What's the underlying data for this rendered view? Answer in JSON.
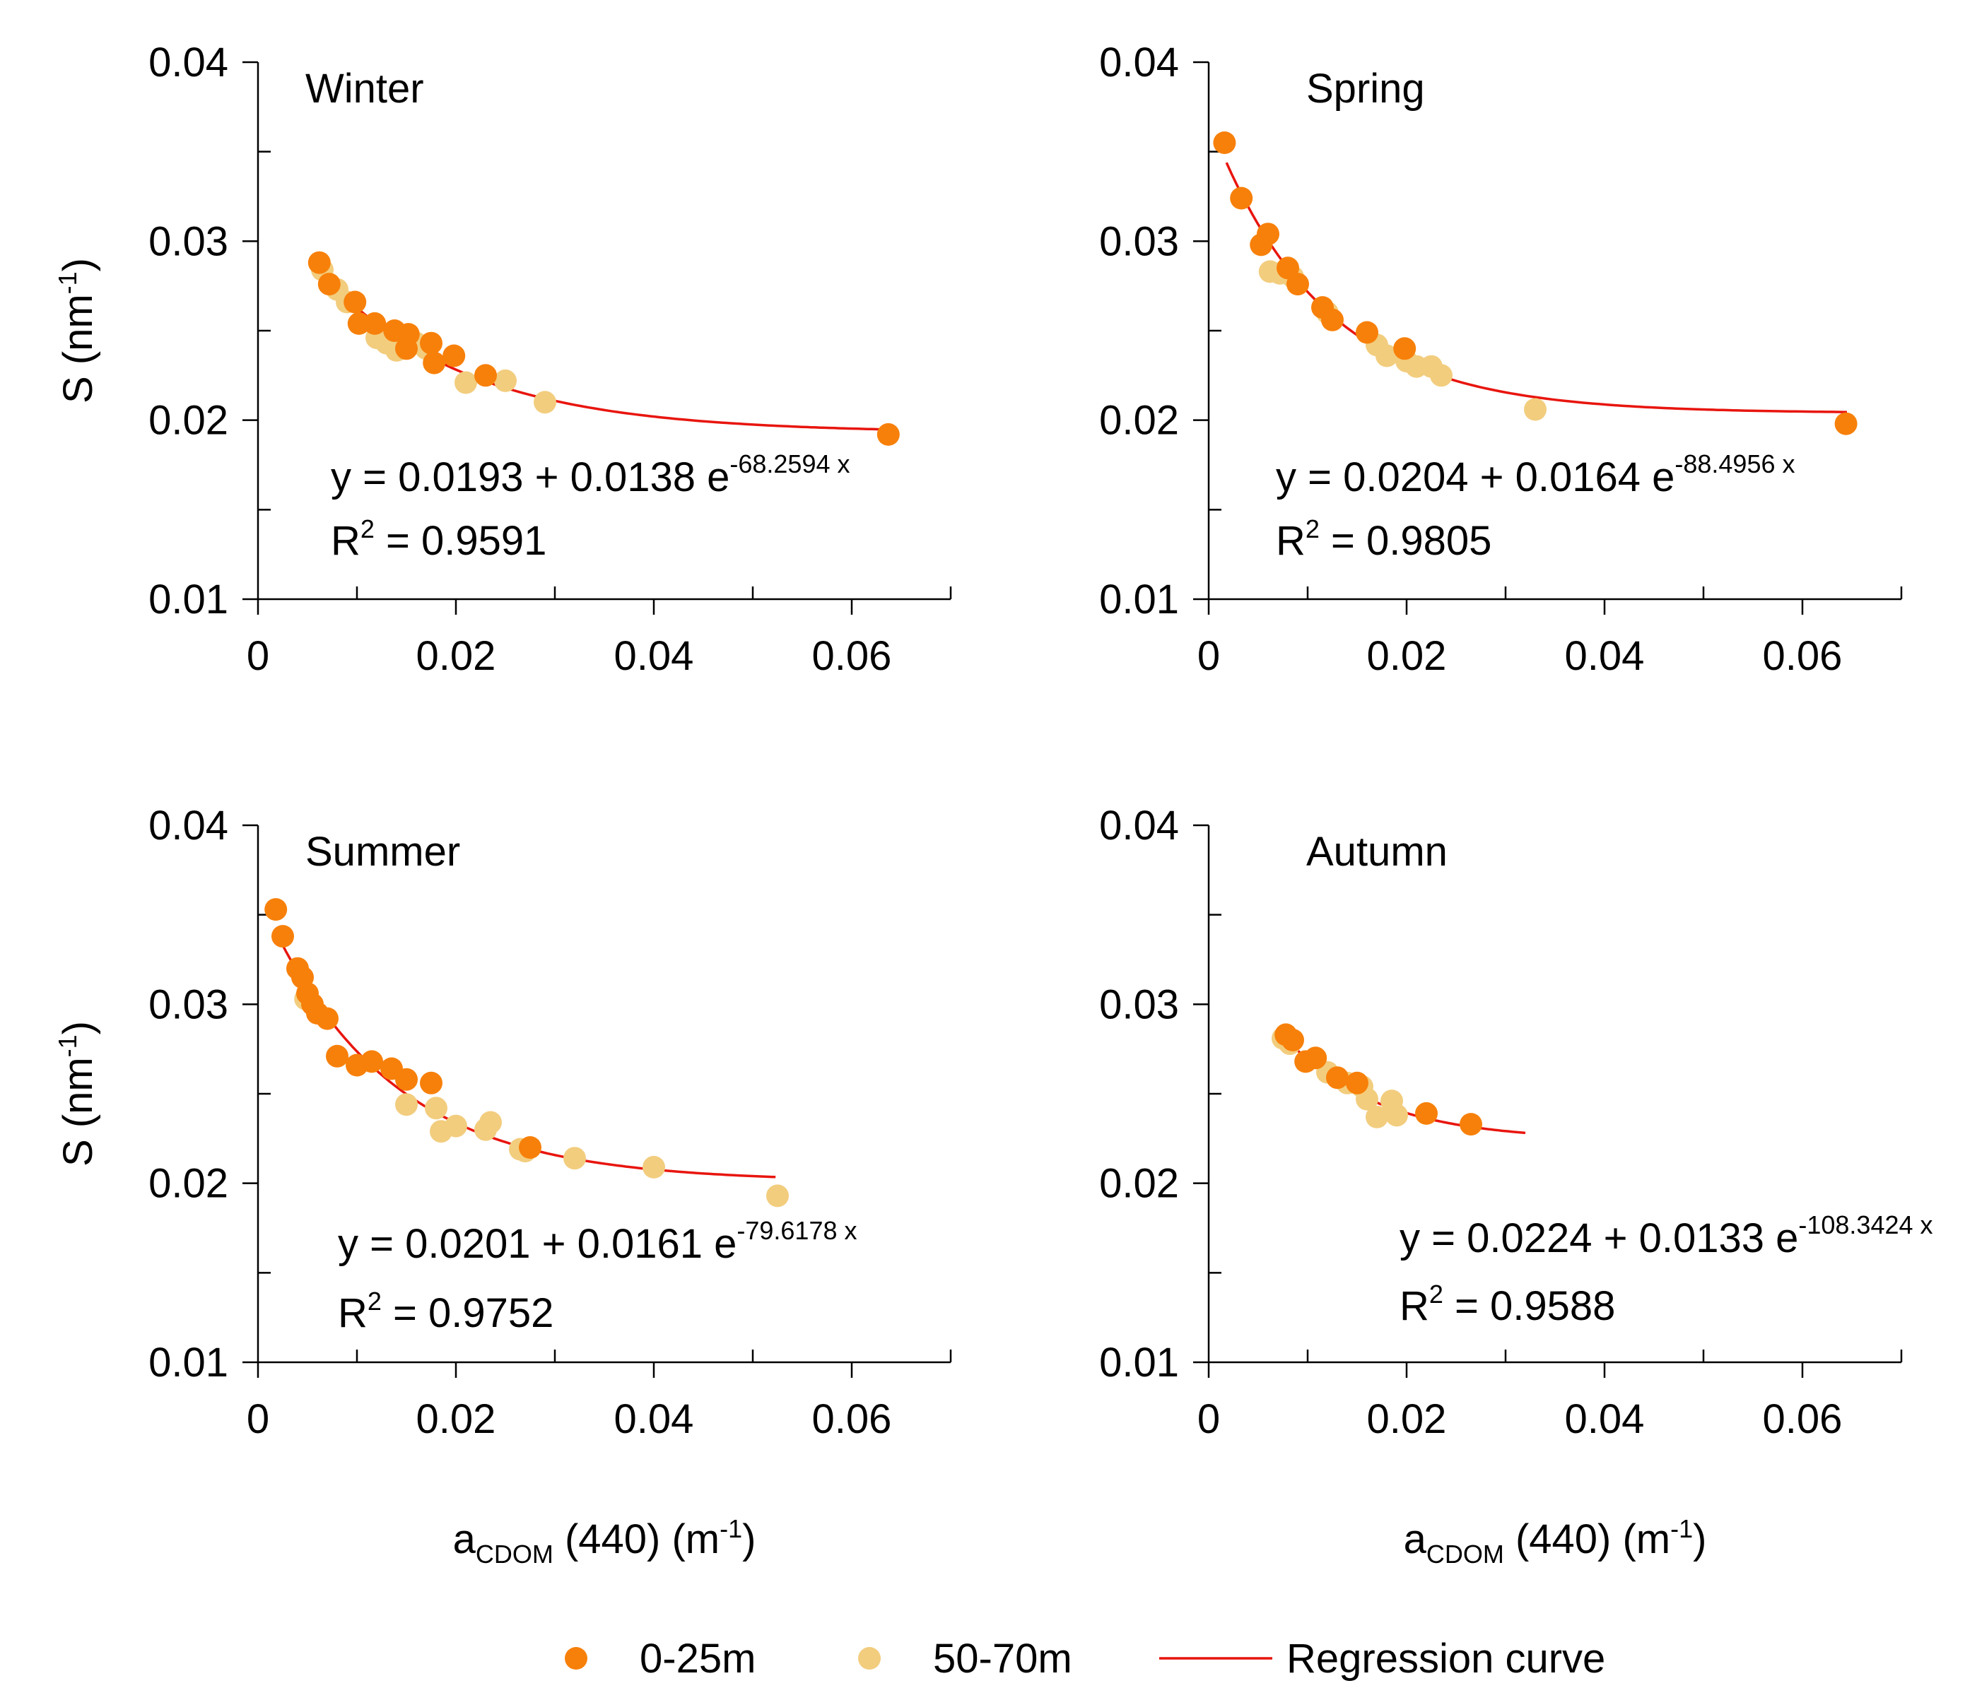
{
  "chart_data": [
    {
      "type": "scatter",
      "title": "Winter",
      "xlabel": "",
      "ylabel": "S (nm-1)",
      "xlim": [
        0,
        0.07
      ],
      "ylim": [
        0.01,
        0.04
      ],
      "xticks": [
        "0",
        "0.02",
        "0.04",
        "0.06"
      ],
      "yticks": [
        "0.01",
        "0.02",
        "0.03",
        "0.04"
      ],
      "fit": {
        "a": 0.0193,
        "b": 0.0138,
        "k": -68.2594,
        "xrange": [
          0.0063,
          0.0635
        ]
      },
      "equation": {
        "prefix": "y = 0.0193 + 0.0138 e",
        "exponent": "-68.2594 x",
        "r2_prefix": "R",
        "r2_sup": "2",
        "r2_value": " = 0.9591"
      },
      "series": [
        {
          "name": "0-25m",
          "color": "#f7800a",
          "x": [
            0.0062,
            0.0072,
            0.0098,
            0.0102,
            0.0118,
            0.0138,
            0.015,
            0.0152,
            0.0175,
            0.0178,
            0.0198,
            0.023,
            0.0637
          ],
          "y": [
            0.0288,
            0.0276,
            0.0266,
            0.0254,
            0.0254,
            0.025,
            0.024,
            0.0248,
            0.0243,
            0.0232,
            0.0236,
            0.0225,
            0.0192
          ]
        },
        {
          "name": "50-70m",
          "color": "#f2cd7e",
          "x": [
            0.0065,
            0.008,
            0.009,
            0.012,
            0.013,
            0.014,
            0.016,
            0.017,
            0.021,
            0.025,
            0.029
          ],
          "y": [
            0.0284,
            0.0273,
            0.0266,
            0.0246,
            0.0243,
            0.0239,
            0.0243,
            0.024,
            0.0221,
            0.0222,
            0.021
          ]
        }
      ]
    },
    {
      "type": "scatter",
      "title": "Spring",
      "xlabel": "",
      "ylabel": "",
      "xlim": [
        0,
        0.07
      ],
      "ylim": [
        0.01,
        0.04
      ],
      "xticks": [
        "0",
        "0.02",
        "0.04",
        "0.06"
      ],
      "yticks": [
        "0.01",
        "0.02",
        "0.03",
        "0.04"
      ],
      "fit": {
        "a": 0.0204,
        "b": 0.0164,
        "k": -88.4956,
        "xrange": [
          0.0018,
          0.0645
        ]
      },
      "equation": {
        "prefix": "y = 0.0204 + 0.0164 e",
        "exponent": "-88.4956 x",
        "r2_prefix": "R",
        "r2_sup": "2",
        "r2_value": " = 0.9805"
      },
      "series": [
        {
          "name": "0-25m",
          "color": "#f7800a",
          "x": [
            0.0016,
            0.0033,
            0.0053,
            0.006,
            0.008,
            0.009,
            0.0115,
            0.0125,
            0.016,
            0.0198,
            0.0644
          ],
          "y": [
            0.0355,
            0.0324,
            0.0298,
            0.0304,
            0.0285,
            0.0276,
            0.0263,
            0.0256,
            0.0249,
            0.024,
            0.0198
          ]
        },
        {
          "name": "50-70m",
          "color": "#f2cd7e",
          "x": [
            0.0062,
            0.0072,
            0.0085,
            0.012,
            0.017,
            0.018,
            0.02,
            0.021,
            0.0225,
            0.0235,
            0.033
          ],
          "y": [
            0.0283,
            0.0282,
            0.028,
            0.026,
            0.0242,
            0.0236,
            0.0233,
            0.023,
            0.023,
            0.0225,
            0.0206
          ]
        }
      ]
    },
    {
      "type": "scatter",
      "title": "Summer",
      "xlabel": "aCDOM (440) (m-1)",
      "ylabel": "S (nm-1)",
      "xlim": [
        0,
        0.07
      ],
      "ylim": [
        0.01,
        0.04
      ],
      "xticks": [
        "0",
        "0.02",
        "0.04",
        "0.06"
      ],
      "yticks": [
        "0.01",
        "0.02",
        "0.03",
        "0.04"
      ],
      "fit": {
        "a": 0.0201,
        "b": 0.0161,
        "k": -79.6178,
        "xrange": [
          0.002,
          0.0523
        ]
      },
      "equation": {
        "prefix": "y = 0.0201 + 0.0161 e",
        "exponent": "-79.6178 x",
        "r2_prefix": "R",
        "r2_sup": "2",
        "r2_value": " = 0.9752"
      },
      "series": [
        {
          "name": "0-25m",
          "color": "#f7800a",
          "x": [
            0.0018,
            0.0025,
            0.004,
            0.0045,
            0.005,
            0.0055,
            0.006,
            0.007,
            0.008,
            0.01,
            0.0115,
            0.0135,
            0.015,
            0.0175,
            0.0275
          ],
          "y": [
            0.0353,
            0.0338,
            0.032,
            0.0315,
            0.0306,
            0.03,
            0.0295,
            0.0292,
            0.0271,
            0.0266,
            0.0268,
            0.0264,
            0.0258,
            0.0256,
            0.022
          ]
        },
        {
          "name": "50-70m",
          "color": "#f2cd7e",
          "x": [
            0.0048,
            0.015,
            0.018,
            0.0185,
            0.02,
            0.023,
            0.0235,
            0.0265,
            0.027,
            0.032,
            0.04,
            0.0525
          ],
          "y": [
            0.0303,
            0.0244,
            0.0242,
            0.0229,
            0.0232,
            0.023,
            0.0234,
            0.0219,
            0.0218,
            0.0214,
            0.0209,
            0.0193
          ]
        }
      ]
    },
    {
      "type": "scatter",
      "title": "Autumn",
      "xlabel": "aCDOM (440) (m-1)",
      "ylabel": "",
      "xlim": [
        0,
        0.07
      ],
      "ylim": [
        0.01,
        0.04
      ],
      "xticks": [
        "0",
        "0.02",
        "0.04",
        "0.06"
      ],
      "yticks": [
        "0.01",
        "0.02",
        "0.03",
        "0.04"
      ],
      "fit": {
        "a": 0.0224,
        "b": 0.0133,
        "k": -108.3424,
        "xrange": [
          0.0075,
          0.032
        ]
      },
      "equation": {
        "prefix": "y = 0.0224 + 0.0133 e",
        "exponent": "-108.3424 x",
        "r2_prefix": "R",
        "r2_sup": "2",
        "r2_value": " = 0.9588"
      },
      "series": [
        {
          "name": "0-25m",
          "color": "#f7800a",
          "x": [
            0.0078,
            0.0085,
            0.0098,
            0.0108,
            0.013,
            0.015,
            0.022,
            0.0265
          ],
          "y": [
            0.0283,
            0.028,
            0.0268,
            0.027,
            0.0259,
            0.0256,
            0.0239,
            0.0233
          ]
        },
        {
          "name": "50-70m",
          "color": "#f2cd7e",
          "x": [
            0.0075,
            0.0082,
            0.012,
            0.014,
            0.0155,
            0.016,
            0.017,
            0.0185,
            0.019
          ],
          "y": [
            0.0281,
            0.0278,
            0.0262,
            0.0256,
            0.0254,
            0.0247,
            0.0237,
            0.0246,
            0.0238
          ]
        }
      ]
    }
  ],
  "axis_labels": {
    "y_main": "S (nm",
    "y_sup": "-1",
    "y_close": ")",
    "x_main": "a",
    "x_sub": "CDOM",
    "x_mid": " (440) (m",
    "x_sup": "-1",
    "x_close": ")"
  },
  "legend": {
    "items": [
      {
        "label": "0-25m",
        "kind": "marker",
        "color": "#f7800a"
      },
      {
        "label": "50-70m",
        "kind": "marker",
        "color": "#f2cd7e"
      },
      {
        "label": "Regression curve",
        "kind": "line",
        "color": "#e8150e"
      }
    ]
  },
  "colors": {
    "fit_line": "#e8150e",
    "axis": "#000000"
  }
}
